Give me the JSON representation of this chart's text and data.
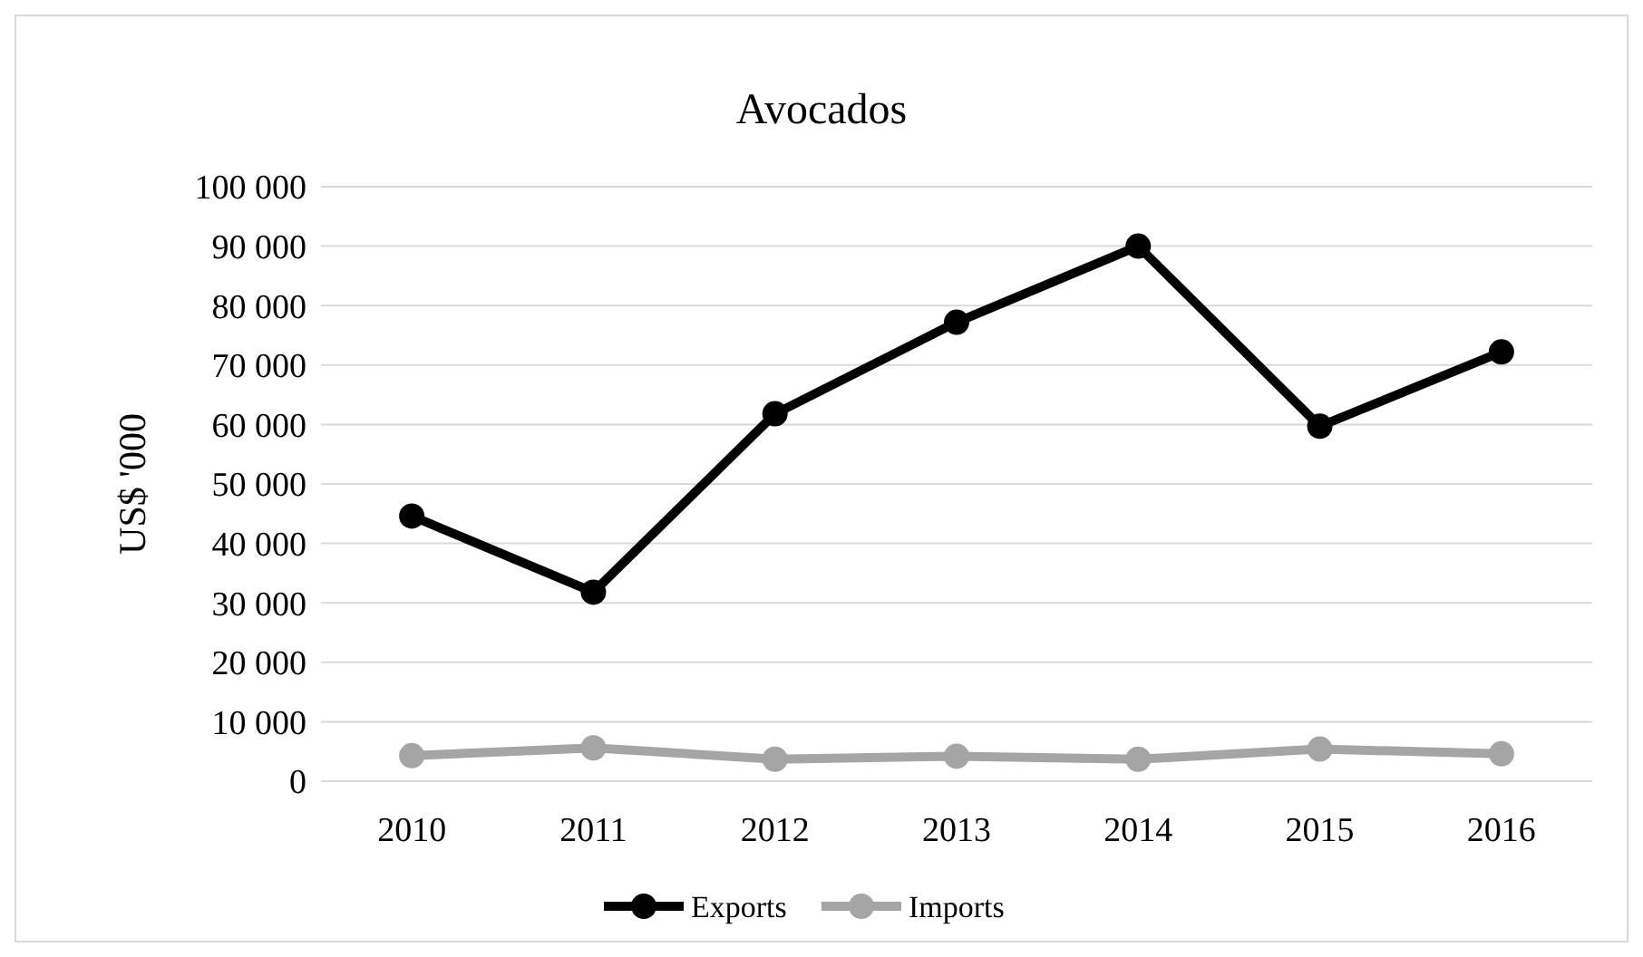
{
  "chart_data": {
    "type": "line",
    "title": "Avocados",
    "ylabel": "US$ '000",
    "categories": [
      "2010",
      "2011",
      "2012",
      "2013",
      "2014",
      "2015",
      "2016"
    ],
    "series": [
      {
        "name": "Exports",
        "color": "#000000",
        "values": [
          44600,
          31800,
          61800,
          77200,
          90000,
          59700,
          72200
        ]
      },
      {
        "name": "Imports",
        "color": "#a5a5a5",
        "values": [
          4300,
          5600,
          3700,
          4200,
          3700,
          5400,
          4600
        ]
      }
    ],
    "ylim": [
      0,
      100000
    ],
    "yticks": [
      {
        "value": 0,
        "label": "0"
      },
      {
        "value": 10000,
        "label": "10 000"
      },
      {
        "value": 20000,
        "label": "20 000"
      },
      {
        "value": 30000,
        "label": "30 000"
      },
      {
        "value": 40000,
        "label": "40 000"
      },
      {
        "value": 50000,
        "label": "50 000"
      },
      {
        "value": 60000,
        "label": "60 000"
      },
      {
        "value": 70000,
        "label": "70 000"
      },
      {
        "value": 80000,
        "label": "80 000"
      },
      {
        "value": 90000,
        "label": "90 000"
      },
      {
        "value": 100000,
        "label": "100 000"
      }
    ],
    "grid": "y",
    "legend": "bottom",
    "marker": "circle",
    "line_style": "solid"
  }
}
